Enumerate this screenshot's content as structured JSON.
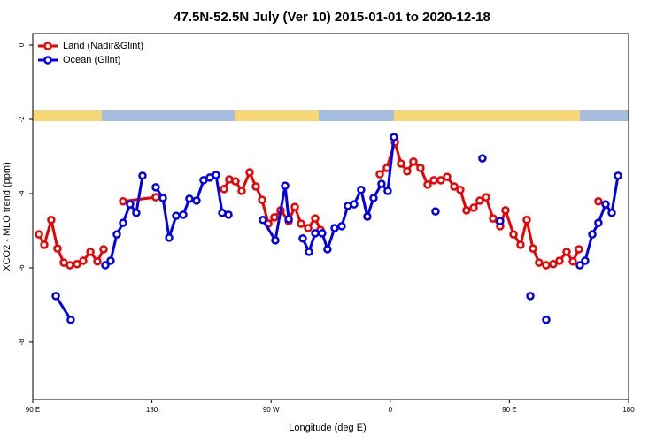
{
  "chart_data": {
    "type": "line",
    "title": "47.5N-52.5N July (Ver 10)   2015-01-01 to 2020-12-18",
    "x_label": "Longitude (deg E)",
    "y_label": "XCO2 - MLO trend (ppm)",
    "xlim": [
      90,
      540
    ],
    "ylim": [
      -9.55,
      0.31
    ],
    "xticks": [
      {
        "value": 90,
        "label": "90 E"
      },
      180,
      {
        "value": 270,
        "label": "90 W"
      },
      {
        "value": 360,
        "label": "0"
      },
      {
        "value": 450,
        "label": "90 E"
      },
      {
        "value": 540,
        "label": "180"
      }
    ],
    "yticks": [
      -8,
      -6,
      -4,
      -2,
      0
    ],
    "legend": "top-left",
    "series": [
      {
        "name": "Land (Nadir&Glint)",
        "color": "#ee0000",
        "x": [
          94.7,
          98.7,
          104.0,
          108.7,
          113.4,
          118.1,
          123.4,
          128.1,
          133.5,
          138.8,
          143.5,
          null,
          158.2,
          182.9,
          null,
          234.4,
          238.4,
          243.1,
          247.8,
          253.8,
          258.5,
          263.2,
          267.9,
          272.5,
          277.2,
          283.3,
          287.9,
          292.6,
          298.0,
          303.3,
          307.3,
          null,
          352.1,
          357.4,
          363.5,
          368.1,
          372.8,
          377.5,
          382.8,
          388.2,
          392.9,
          398.2,
          402.9,
          408.3,
          412.9,
          417.6,
          423.0,
          427.6,
          432.3,
          437.7,
          443.0,
          447.0,
          453.1,
          458.4,
          463.1,
          467.8,
          472.4,
          477.8,
          483.1,
          487.8,
          493.2,
          497.9,
          502.5,
          null,
          517.2
        ],
        "values": [
          -5.1,
          -5.38,
          -4.71,
          -5.48,
          -5.86,
          -5.93,
          -5.9,
          -5.81,
          -5.57,
          -5.83,
          -5.5,
          null,
          -4.21,
          -4.1,
          null,
          -3.88,
          -3.62,
          -3.67,
          -3.93,
          -3.43,
          -3.81,
          -4.17,
          -4.81,
          -4.64,
          -4.45,
          -4.74,
          -4.36,
          -4.81,
          -4.93,
          -4.67,
          -4.98,
          null,
          -3.48,
          -3.31,
          -2.62,
          -3.19,
          -3.4,
          -3.14,
          -3.31,
          -3.76,
          -3.64,
          -3.64,
          -3.55,
          -3.81,
          -3.9,
          -4.45,
          -4.38,
          -4.19,
          -4.1,
          -4.67,
          -4.88,
          -4.45,
          -5.1,
          -5.38,
          -4.71,
          -5.48,
          -5.86,
          -5.93,
          -5.9,
          -5.81,
          -5.57,
          -5.83,
          -5.5,
          null,
          -4.21
        ]
      },
      {
        "name": "Ocean (Glint)",
        "color": "#0000ee",
        "x": [
          107.4,
          118.7,
          null,
          144.8,
          148.8,
          153.5,
          158.2,
          163.5,
          168.2,
          172.9,
          null,
          182.9,
          188.3,
          193.0,
          198.3,
          203.7,
          208.3,
          213.7,
          219.0,
          223.7,
          228.4,
          233.1,
          237.8,
          null,
          263.8,
          273.2,
          280.6,
          283.3,
          null,
          293.9,
          298.6,
          303.3,
          308.6,
          312.6,
          318.0,
          323.3,
          328.0,
          332.7,
          338.0,
          342.7,
          347.4,
          353.4,
          358.1,
          362.8,
          null,
          394.2,
          null,
          429.6,
          null,
          443.0,
          null,
          465.8,
          null,
          477.8,
          null,
          503.2,
          507.2,
          512.6,
          517.2,
          522.6,
          527.3,
          532.0
        ],
        "values": [
          -6.76,
          -7.4,
          null,
          -5.93,
          -5.81,
          -5.1,
          -4.79,
          -4.29,
          -4.52,
          -3.52,
          null,
          -3.83,
          -4.12,
          -5.19,
          -4.6,
          -4.57,
          -4.14,
          -4.19,
          -3.64,
          -3.57,
          -3.5,
          -4.52,
          -4.57,
          null,
          -4.71,
          -5.26,
          -3.79,
          -4.69,
          null,
          -5.21,
          -5.57,
          -5.07,
          -5.07,
          -5.5,
          -4.93,
          -4.88,
          -4.33,
          -4.29,
          -3.9,
          -4.62,
          -4.12,
          -3.74,
          -3.93,
          -2.48,
          null,
          -4.48,
          null,
          -3.05,
          null,
          -4.74,
          null,
          -6.76,
          null,
          -7.4,
          null,
          -5.93,
          -5.81,
          -5.1,
          -4.79,
          -4.29,
          -4.52,
          -3.52
        ]
      }
    ]
  }
}
